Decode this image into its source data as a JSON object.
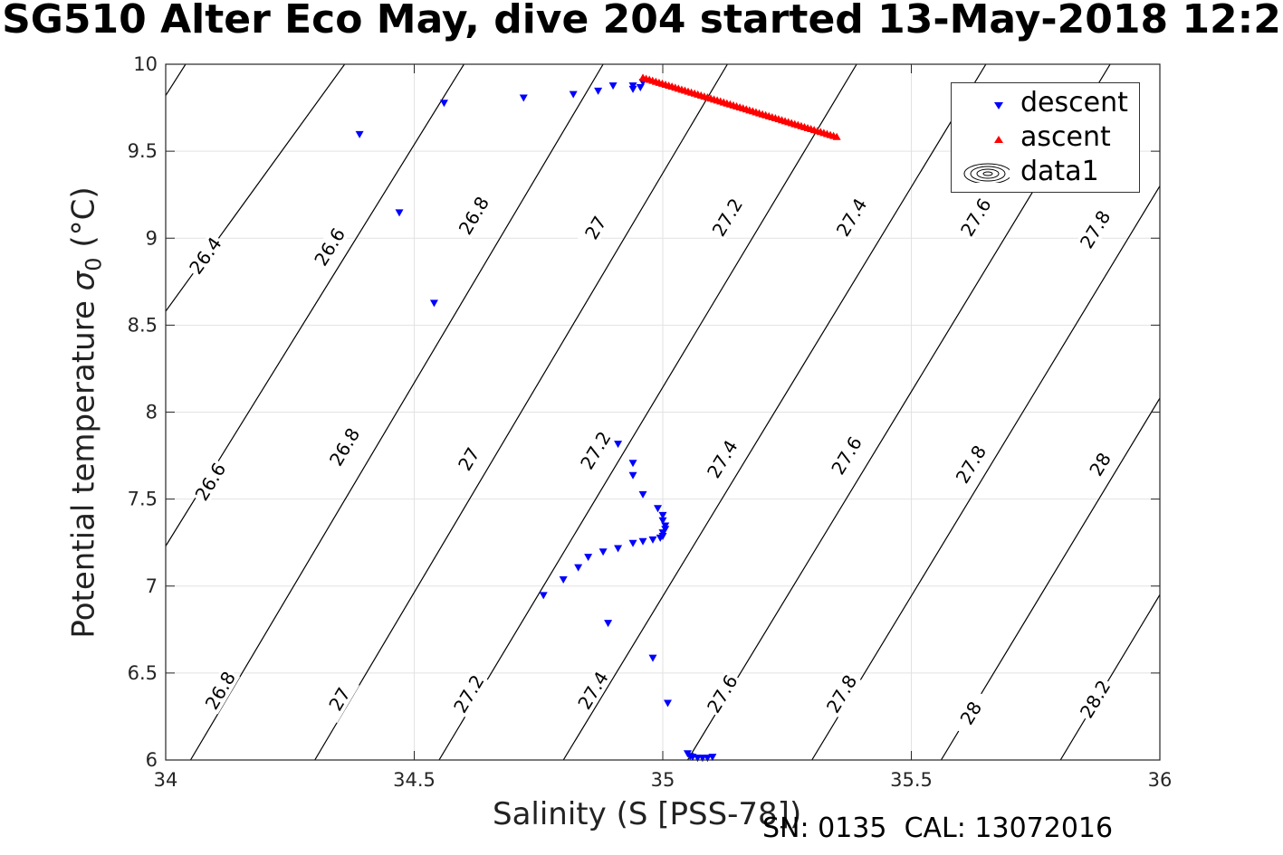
{
  "title": "SG510 Alter Eco May, dive 204 started 13-May-2018 12:2",
  "xlabel": "Salinity (S [PSS-78])",
  "ylabel_main": "Potential temperature ",
  "ylabel_sigma": "σ",
  "ylabel_sub": "0",
  "ylabel_unit": " (°C)",
  "footer": {
    "sn": "SN: 0135",
    "cal": "CAL: 13072016"
  },
  "legend": [
    {
      "label": "descent",
      "color": "#0000ff",
      "marker": "triangle-down"
    },
    {
      "label": "ascent",
      "color": "#ff0000",
      "marker": "triangle-up"
    },
    {
      "label": "data1",
      "marker": "contour"
    }
  ],
  "chart_data": {
    "type": "scatter",
    "xlim": [
      34,
      36
    ],
    "ylim": [
      6,
      10
    ],
    "xticks": [
      34,
      34.5,
      35,
      35.5,
      36
    ],
    "xtick_labels": [
      "34",
      "34.5",
      "35",
      "35.5",
      "36"
    ],
    "yticks": [
      6,
      6.5,
      7,
      7.5,
      8,
      8.5,
      9,
      9.5,
      10
    ],
    "ytick_labels": [
      "6",
      "6.5",
      "7",
      "7.5",
      "8",
      "8.5",
      "9",
      "9.5",
      "10"
    ],
    "grid": true,
    "legend_position": "top-right",
    "series": [
      {
        "name": "descent",
        "color": "#0000ff",
        "marker": "triangle-down",
        "points": [
          [
            34.96,
            9.9
          ],
          [
            34.94,
            9.88
          ],
          [
            34.955,
            9.87
          ],
          [
            34.94,
            9.86
          ],
          [
            34.9,
            9.88
          ],
          [
            34.87,
            9.85
          ],
          [
            34.82,
            9.83
          ],
          [
            34.72,
            9.81
          ],
          [
            34.56,
            9.78
          ],
          [
            34.39,
            9.6
          ],
          [
            34.47,
            9.15
          ],
          [
            34.54,
            8.63
          ],
          [
            34.91,
            7.82
          ],
          [
            34.94,
            7.71
          ],
          [
            34.94,
            7.64
          ],
          [
            34.96,
            7.53
          ],
          [
            34.99,
            7.45
          ],
          [
            35.0,
            7.41
          ],
          [
            35.0,
            7.38
          ],
          [
            35.005,
            7.35
          ],
          [
            35.005,
            7.33
          ],
          [
            35.0,
            7.31
          ],
          [
            35.0,
            7.29
          ],
          [
            34.995,
            7.28
          ],
          [
            34.98,
            7.27
          ],
          [
            34.96,
            7.26
          ],
          [
            34.94,
            7.25
          ],
          [
            34.91,
            7.22
          ],
          [
            34.88,
            7.2
          ],
          [
            34.85,
            7.17
          ],
          [
            34.83,
            7.11
          ],
          [
            34.8,
            7.04
          ],
          [
            34.76,
            6.95
          ],
          [
            34.89,
            6.79
          ],
          [
            34.98,
            6.59
          ],
          [
            35.01,
            6.33
          ],
          [
            35.05,
            6.04
          ],
          [
            35.055,
            6.025
          ],
          [
            35.06,
            6.02
          ],
          [
            35.07,
            6.015
          ],
          [
            35.08,
            6.015
          ],
          [
            35.09,
            6.015
          ],
          [
            35.1,
            6.02
          ]
        ]
      },
      {
        "name": "ascent",
        "color": "#ff0000",
        "marker": "triangle-up",
        "points": [
          [
            34.96,
            9.92
          ],
          [
            35.35,
            9.58
          ]
        ]
      }
    ],
    "contours": {
      "name": "data1",
      "levels": [
        "26.4",
        "26.6",
        "26.8",
        "27",
        "27.2",
        "27.4",
        "27.6",
        "27.8",
        "28",
        "28.2"
      ],
      "lines": [
        {
          "points": [
            [
              34.0,
              9.82
            ],
            [
              34.04,
              10.0
            ]
          ]
        },
        {
          "points": [
            [
              34.0,
              8.58
            ],
            [
              34.36,
              10.0
            ]
          ],
          "labels": [
            {
              "text": "26.4",
              "at": [
                34.08,
                8.9
              ]
            }
          ]
        },
        {
          "points": [
            [
              34.0,
              7.23
            ],
            [
              34.6,
              10.0
            ]
          ],
          "labels": [
            {
              "text": "26.6",
              "at": [
                34.33,
                8.95
              ]
            },
            {
              "text": "26.6",
              "at": [
                34.09,
                7.6
              ]
            }
          ]
        },
        {
          "points": [
            [
              34.05,
              6.0
            ],
            [
              34.88,
              10.0
            ]
          ],
          "labels": [
            {
              "text": "26.8",
              "at": [
                34.62,
                9.13
              ]
            },
            {
              "text": "26.8",
              "at": [
                34.36,
                7.8
              ]
            },
            {
              "text": "26.8",
              "at": [
                34.11,
                6.4
              ]
            }
          ]
        },
        {
          "points": [
            [
              34.3,
              6.0
            ],
            [
              35.13,
              10.0
            ]
          ],
          "labels": [
            {
              "text": "27",
              "at": [
                34.865,
                9.06
              ]
            },
            {
              "text": "27",
              "at": [
                34.61,
                7.73
              ]
            },
            {
              "text": "27",
              "at": [
                34.35,
                6.35
              ]
            }
          ]
        },
        {
          "points": [
            [
              34.55,
              6.0
            ],
            [
              35.39,
              10.0
            ]
          ],
          "labels": [
            {
              "text": "27.2",
              "at": [
                35.13,
                9.12
              ]
            },
            {
              "text": "27.2",
              "at": [
                34.865,
                7.78
              ]
            },
            {
              "text": "27.2",
              "at": [
                34.61,
                6.38
              ]
            }
          ]
        },
        {
          "points": [
            [
              34.8,
              6.0
            ],
            [
              35.65,
              10.0
            ]
          ],
          "labels": [
            {
              "text": "27.4",
              "at": [
                35.38,
                9.12
              ]
            },
            {
              "text": "27.4",
              "at": [
                35.12,
                7.73
              ]
            },
            {
              "text": "27.4",
              "at": [
                34.86,
                6.4
              ]
            }
          ]
        },
        {
          "points": [
            [
              35.05,
              6.0
            ],
            [
              35.9,
              10.0
            ]
          ],
          "labels": [
            {
              "text": "27.6",
              "at": [
                35.63,
                9.12
              ]
            },
            {
              "text": "27.6",
              "at": [
                35.37,
                7.75
              ]
            },
            {
              "text": "27.6",
              "at": [
                35.12,
                6.38
              ]
            }
          ]
        },
        {
          "points": [
            [
              35.3,
              6.0
            ],
            [
              36.0,
              9.3
            ]
          ],
          "labels": [
            {
              "text": "27.8",
              "at": [
                35.87,
                9.05
              ]
            },
            {
              "text": "27.8",
              "at": [
                35.62,
                7.7
              ]
            },
            {
              "text": "27.8",
              "at": [
                35.36,
                6.38
              ]
            }
          ]
        },
        {
          "points": [
            [
              35.56,
              6.0
            ],
            [
              36.0,
              8.08
            ]
          ],
          "labels": [
            {
              "text": "28",
              "at": [
                35.88,
                7.7
              ]
            },
            {
              "text": "28",
              "at": [
                35.62,
                6.27
              ]
            }
          ]
        },
        {
          "points": [
            [
              35.8,
              6.0
            ],
            [
              36.0,
              6.95
            ]
          ],
          "labels": [
            {
              "text": "28.2",
              "at": [
                35.87,
                6.35
              ]
            }
          ]
        }
      ]
    }
  }
}
